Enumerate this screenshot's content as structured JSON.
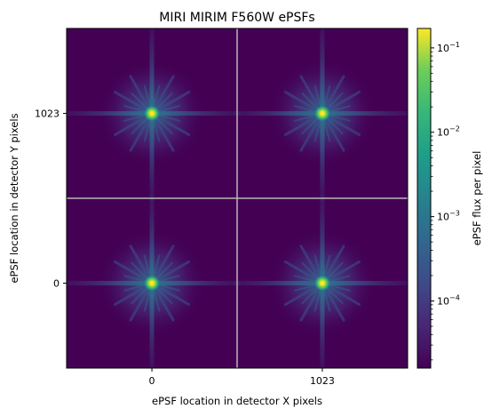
{
  "chart_data": {
    "type": "heatmap",
    "title": "MIRI MIRIM F560W ePSFs",
    "xlabel": "ePSF location in detector X pixels",
    "ylabel": "ePSF location in detector Y pixels",
    "x_ticks": [
      "0",
      "1023"
    ],
    "y_ticks": [
      "1023",
      "0"
    ],
    "grid_positions": [
      {
        "x": 0,
        "y": 1023
      },
      {
        "x": 1023,
        "y": 1023
      },
      {
        "x": 0,
        "y": 0
      },
      {
        "x": 1023,
        "y": 0
      }
    ],
    "colorbar": {
      "label": "ePSF flux per pixel",
      "scale": "log",
      "range": [
        1.6e-05,
        0.17
      ],
      "colormap": "viridis",
      "ticks": [
        {
          "base": "10",
          "exp": "−1",
          "value": 0.1
        },
        {
          "base": "10",
          "exp": "−2",
          "value": 0.01
        },
        {
          "base": "10",
          "exp": "−3",
          "value": 0.001
        },
        {
          "base": "10",
          "exp": "−4",
          "value": 0.0001
        }
      ]
    },
    "colors": {
      "background": "#440154",
      "divider": "#b8b8b8"
    }
  }
}
